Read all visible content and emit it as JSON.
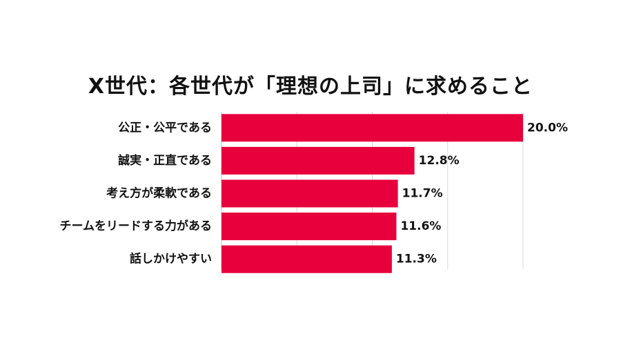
{
  "chart_data": {
    "type": "bar",
    "orientation": "horizontal",
    "title": "X世代：各世代が「理想の上司」に求めること",
    "categories": [
      "公正・公平である",
      "誠実・正直である",
      "考え方が柔軟である",
      "チームをリードする力がある",
      "話しかけやすい"
    ],
    "values": [
      20.0,
      12.8,
      11.7,
      11.6,
      11.3
    ],
    "value_labels": [
      "20.0%",
      "12.8%",
      "11.7%",
      "11.6%",
      "11.3%"
    ],
    "xlim": [
      0,
      20
    ],
    "grid": true,
    "bar_color": "#e8003d"
  }
}
